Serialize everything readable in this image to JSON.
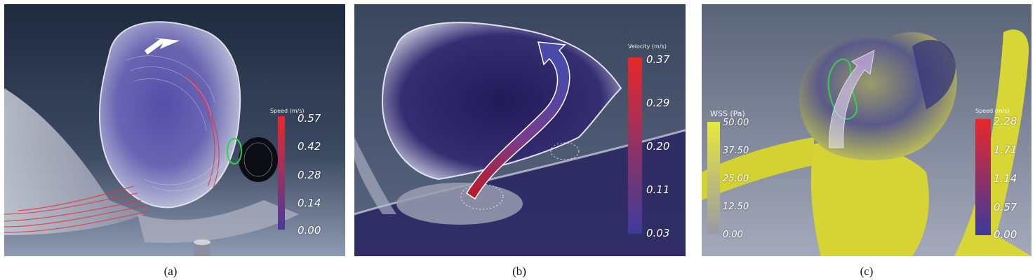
{
  "panels": [
    {
      "caption": "(a)",
      "colorbar": {
        "title": "Speed (m/s)",
        "ticks": [
          "0.57",
          "0.42",
          "0.28",
          "0.14",
          "0.00"
        ],
        "colors": [
          "#e8282a",
          "#4a3a9a"
        ]
      }
    },
    {
      "caption": "(b)",
      "colorbar": {
        "title": "Velocity (m/s)",
        "ticks": [
          "0.37",
          "0.29",
          "0.20",
          "0.11",
          "0.03"
        ],
        "colors": [
          "#e8282a",
          "#3c3c9c"
        ]
      }
    },
    {
      "caption": "(c)",
      "colorbar_left": {
        "title": "WSS (Pa)",
        "ticks": [
          "50.00",
          "37.50",
          "25.00",
          "12.50",
          "0.00"
        ],
        "colors": [
          "#e8e83a",
          "#9a9aa8"
        ]
      },
      "colorbar_right": {
        "title": "Speed (m/s)",
        "ticks": [
          "2.28",
          "1.71",
          "1.14",
          "0.57",
          "0.00"
        ],
        "colors": [
          "#e8282a",
          "#3a3a9c"
        ]
      }
    }
  ]
}
